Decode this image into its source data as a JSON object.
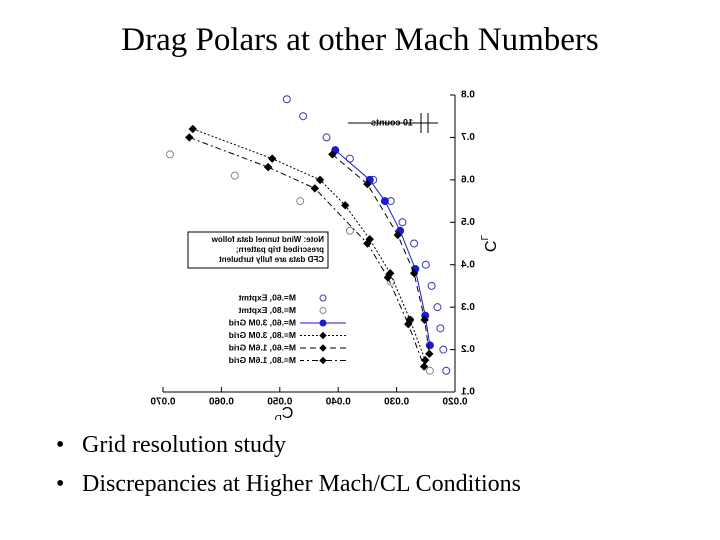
{
  "header": {
    "title": "Drag Polars at other Mach Numbers"
  },
  "bullets": [
    "Grid resolution study",
    "Discrepancies at Higher Mach/CL Conditions"
  ],
  "chart_data": {
    "type": "scatter",
    "xlabel": "C",
    "xlabel_sub": "D",
    "ylabel": "C",
    "ylabel_sub": "L",
    "mirrored": true,
    "xlim": [
      0.02,
      0.07
    ],
    "xticks": [
      {
        "value": 0.02,
        "label": "0.020"
      },
      {
        "value": 0.03,
        "label": "0.030"
      },
      {
        "value": 0.04,
        "label": "0.040"
      },
      {
        "value": 0.05,
        "label": "0.050"
      },
      {
        "value": 0.06,
        "label": "0.060"
      },
      {
        "value": 0.07,
        "label": "0.070"
      }
    ],
    "ylim": [
      0.1,
      0.8
    ],
    "yticks": [
      0.1,
      0.2,
      0.3,
      0.4,
      0.5,
      0.6,
      0.7,
      0.8
    ],
    "grid": false,
    "note": [
      "Note: Wind tunnel data follow",
      "prescribed trip pattern;",
      "CFD data are fully turbulent"
    ],
    "annotation": "10 counts",
    "series": [
      {
        "name": "M=.60, Exptmt",
        "color": "#3a3ab0",
        "marker": "circle",
        "filled": false,
        "line": "none",
        "x": [
          0.0488,
          0.046,
          0.042,
          0.038,
          0.034,
          0.031,
          0.029,
          0.027,
          0.025,
          0.024,
          0.023,
          0.0225,
          0.022,
          0.0215
        ],
        "values": [
          0.79,
          0.75,
          0.7,
          0.65,
          0.6,
          0.55,
          0.5,
          0.45,
          0.4,
          0.35,
          0.3,
          0.25,
          0.2,
          0.15
        ]
      },
      {
        "name": "M=.80, Exptmt",
        "color": "#888888",
        "marker": "circle",
        "filled": false,
        "line": "none",
        "x": [
          0.0688,
          0.0577,
          0.0465,
          0.038,
          0.031,
          0.0277,
          0.0243
        ],
        "values": [
          0.66,
          0.61,
          0.55,
          0.48,
          0.36,
          0.27,
          0.15
        ]
      },
      {
        "name": "M=.60, 3.0M Grid",
        "color": "#1a1ad0",
        "marker": "circle",
        "filled": true,
        "line": "solid",
        "x": [
          0.0405,
          0.0346,
          0.032,
          0.0294,
          0.0268,
          0.0251,
          0.0243
        ],
        "values": [
          0.67,
          0.6,
          0.55,
          0.48,
          0.39,
          0.28,
          0.21
        ]
      },
      {
        "name": "M=.80, 3.0M Grid",
        "color": "#000000",
        "marker": "diamond",
        "filled": true,
        "line": "dotted",
        "x": [
          0.0649,
          0.0513,
          0.0431,
          0.0388,
          0.0346,
          0.0311,
          0.0277,
          0.0251
        ],
        "values": [
          0.72,
          0.65,
          0.6,
          0.54,
          0.46,
          0.38,
          0.27,
          0.175
        ]
      },
      {
        "name": "M=.60, 1.6M Grid",
        "color": "#000000",
        "marker": "diamond",
        "filled": true,
        "line": "dashed",
        "x": [
          0.041,
          0.035,
          0.0298,
          0.027,
          0.0252,
          0.0244
        ],
        "values": [
          0.66,
          0.59,
          0.47,
          0.38,
          0.27,
          0.19
        ]
      },
      {
        "name": "M=.80, 1.6M Grid",
        "color": "#000000",
        "marker": "diamond",
        "filled": true,
        "line": "dashdot",
        "x": [
          0.0655,
          0.052,
          0.044,
          0.035,
          0.0315,
          0.028,
          0.0253
        ],
        "values": [
          0.7,
          0.63,
          0.58,
          0.45,
          0.37,
          0.26,
          0.16
        ]
      }
    ]
  }
}
